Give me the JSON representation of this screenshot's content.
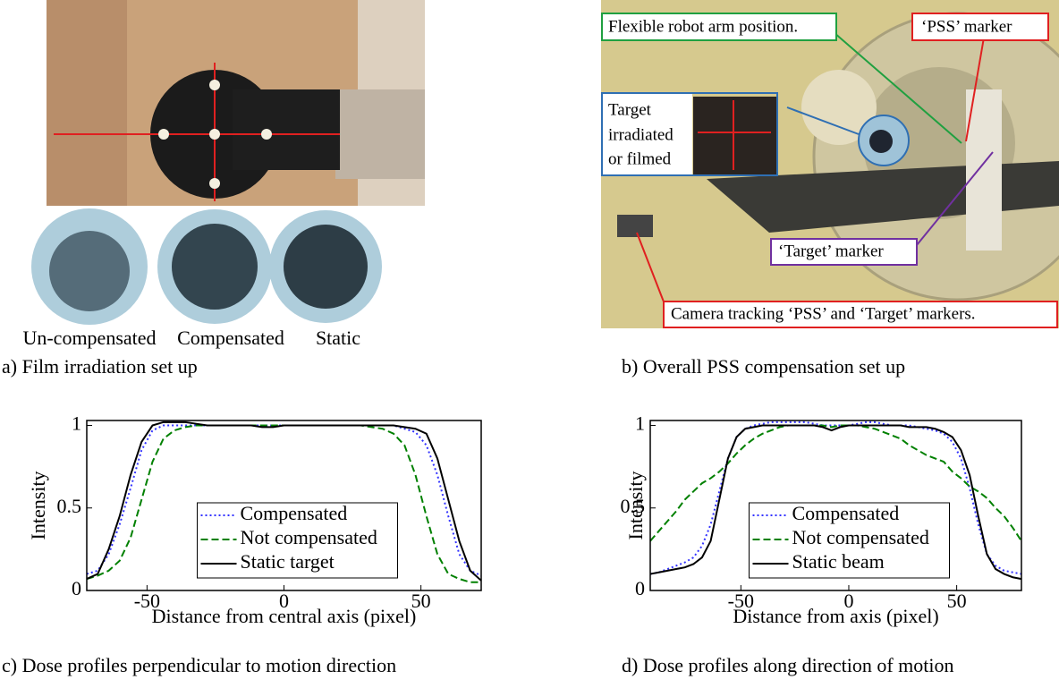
{
  "panel_a": {
    "film_labels": [
      "Un-compensated",
      "Compensated",
      "Static"
    ],
    "caption": "a) Film irradiation set up"
  },
  "panel_b": {
    "annotations": {
      "arm": "Flexible robot arm position.",
      "pss": "‘PSS’ marker",
      "target_lines": [
        "Target",
        "irradiated",
        "or filmed"
      ],
      "target_marker": "‘Target’ marker",
      "camera": "Camera tracking ‘PSS’ and ‘Target’ markers."
    },
    "caption": "b) Overall PSS compensation set up"
  },
  "captions": [
    "c) Dose profiles perpendicular to motion direction",
    "d) Dose profiles along direction of motion"
  ],
  "chart_data": [
    {
      "type": "line",
      "x_label": "Distance from central axis (pixel)",
      "y_label": "Intensity",
      "xlim": [
        -72,
        72
      ],
      "ylim": [
        0,
        1.03
      ],
      "xticks": [
        -50,
        0,
        50
      ],
      "yticks": [
        0,
        0.5,
        1
      ],
      "legend": "lower center",
      "x": [
        -72,
        -68,
        -64,
        -60,
        -56,
        -52,
        -48,
        -44,
        -40,
        -36,
        -32,
        -28,
        -24,
        -20,
        -16,
        -12,
        -8,
        -4,
        0,
        4,
        8,
        12,
        16,
        20,
        24,
        28,
        32,
        36,
        40,
        44,
        48,
        52,
        56,
        60,
        64,
        68,
        72
      ],
      "series": [
        {
          "name": "Compensated",
          "color": "#3333ff",
          "style": "dotted",
          "values": [
            0.1,
            0.12,
            0.22,
            0.4,
            0.62,
            0.85,
            0.97,
            1.0,
            1.0,
            1.0,
            1.0,
            1.0,
            1.0,
            1.0,
            1.0,
            1.0,
            1.0,
            1.0,
            1.0,
            1.0,
            1.0,
            1.0,
            1.0,
            1.0,
            1.0,
            1.0,
            1.0,
            1.0,
            1.0,
            0.98,
            0.96,
            0.88,
            0.7,
            0.45,
            0.22,
            0.12,
            0.09
          ]
        },
        {
          "name": "Not compensated",
          "color": "#008000",
          "style": "dashed",
          "values": [
            0.07,
            0.09,
            0.12,
            0.18,
            0.32,
            0.55,
            0.78,
            0.92,
            0.97,
            0.99,
            1.0,
            1.0,
            1.0,
            1.0,
            1.0,
            1.0,
            1.0,
            1.0,
            1.0,
            1.0,
            1.0,
            1.0,
            1.0,
            1.0,
            1.0,
            1.0,
            0.99,
            0.98,
            0.95,
            0.88,
            0.7,
            0.45,
            0.22,
            0.1,
            0.07,
            0.05,
            0.05
          ]
        },
        {
          "name": "Static target",
          "color": "#000000",
          "style": "solid",
          "values": [
            0.07,
            0.1,
            0.25,
            0.45,
            0.7,
            0.9,
            1.0,
            1.02,
            1.02,
            1.02,
            1.01,
            1.0,
            1.0,
            1.0,
            1.0,
            1.0,
            0.99,
            0.99,
            1.0,
            1.0,
            1.0,
            1.0,
            1.0,
            1.0,
            1.0,
            1.0,
            1.0,
            1.0,
            1.0,
            0.99,
            0.98,
            0.95,
            0.8,
            0.55,
            0.3,
            0.12,
            0.06
          ]
        }
      ]
    },
    {
      "type": "line",
      "x_label": "Distance from axis (pixel)",
      "y_label": "Intensity",
      "xlim": [
        -92,
        80
      ],
      "ylim": [
        0,
        1.03
      ],
      "xticks": [
        -50,
        0,
        50
      ],
      "yticks": [
        0,
        0.5,
        1
      ],
      "legend": "lower center",
      "x": [
        -92,
        -88,
        -84,
        -80,
        -76,
        -72,
        -68,
        -64,
        -60,
        -56,
        -52,
        -48,
        -44,
        -40,
        -36,
        -32,
        -28,
        -24,
        -20,
        -16,
        -12,
        -8,
        -4,
        0,
        4,
        8,
        12,
        16,
        20,
        24,
        28,
        32,
        36,
        40,
        44,
        48,
        52,
        56,
        60,
        64,
        68,
        72,
        76,
        80
      ],
      "series": [
        {
          "name": "Compensated",
          "color": "#3333ff",
          "style": "dotted",
          "values": [
            0.1,
            0.11,
            0.13,
            0.15,
            0.17,
            0.2,
            0.27,
            0.4,
            0.6,
            0.8,
            0.93,
            0.98,
            1.0,
            1.01,
            1.02,
            1.02,
            1.02,
            1.02,
            1.02,
            1.01,
            1.0,
            1.0,
            1.0,
            1.0,
            1.01,
            1.02,
            1.02,
            1.01,
            1.0,
            1.0,
            1.0,
            0.99,
            0.98,
            0.97,
            0.95,
            0.9,
            0.8,
            0.62,
            0.4,
            0.22,
            0.15,
            0.12,
            0.11,
            0.1
          ]
        },
        {
          "name": "Not compensated",
          "color": "#008000",
          "style": "dashed",
          "values": [
            0.3,
            0.36,
            0.42,
            0.48,
            0.55,
            0.6,
            0.65,
            0.68,
            0.72,
            0.77,
            0.83,
            0.88,
            0.92,
            0.95,
            0.97,
            0.99,
            1.0,
            1.0,
            1.0,
            1.0,
            1.0,
            0.99,
            1.0,
            1.0,
            1.0,
            0.99,
            0.98,
            0.96,
            0.94,
            0.92,
            0.88,
            0.85,
            0.82,
            0.8,
            0.78,
            0.72,
            0.68,
            0.63,
            0.6,
            0.56,
            0.5,
            0.45,
            0.38,
            0.3
          ]
        },
        {
          "name": "Static beam",
          "color": "#000000",
          "style": "solid",
          "values": [
            0.1,
            0.11,
            0.12,
            0.13,
            0.14,
            0.16,
            0.2,
            0.3,
            0.55,
            0.8,
            0.93,
            0.98,
            0.99,
            1.0,
            1.0,
            1.0,
            1.0,
            1.0,
            1.0,
            1.0,
            0.99,
            0.97,
            0.99,
            1.0,
            1.0,
            1.0,
            1.0,
            1.0,
            1.0,
            1.0,
            0.99,
            0.99,
            0.99,
            0.98,
            0.96,
            0.93,
            0.85,
            0.7,
            0.45,
            0.22,
            0.13,
            0.1,
            0.08,
            0.07
          ]
        }
      ]
    }
  ]
}
